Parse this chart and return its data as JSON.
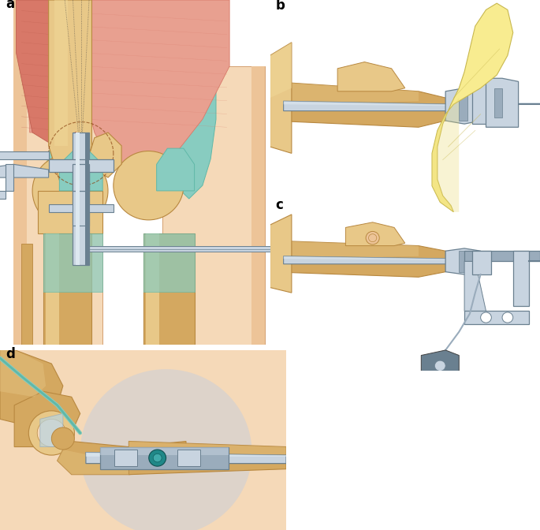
{
  "panel_labels": [
    "a",
    "b",
    "c",
    "d"
  ],
  "panel_label_fontsize": 12,
  "panel_label_fontweight": "bold",
  "background_color": "#ffffff",
  "fig_width": 6.85,
  "fig_height": 6.72,
  "dpi": 100,
  "skin_light": "#f5d9b8",
  "skin_mid": "#edc498",
  "skin_dark": "#d4a070",
  "bone_light": "#e8c888",
  "bone_mid": "#d4a860",
  "bone_dark": "#b88840",
  "muscle_red_light": "#e8a090",
  "muscle_red_mid": "#d87868",
  "muscle_red_dark": "#c06050",
  "teal_light": "#88ccc0",
  "teal_mid": "#60b8a8",
  "teal_dark": "#409888",
  "metal_light": "#c8d4e0",
  "metal_mid": "#9aacbc",
  "metal_dark": "#6a8090",
  "glove_light": "#f8ec90",
  "glove_mid": "#e8d870",
  "glove_dark": "#c8b850",
  "blood_red": "#c03030",
  "shadow_blue": "#c0cce0",
  "outline": "#404040",
  "line_color": "#505050"
}
